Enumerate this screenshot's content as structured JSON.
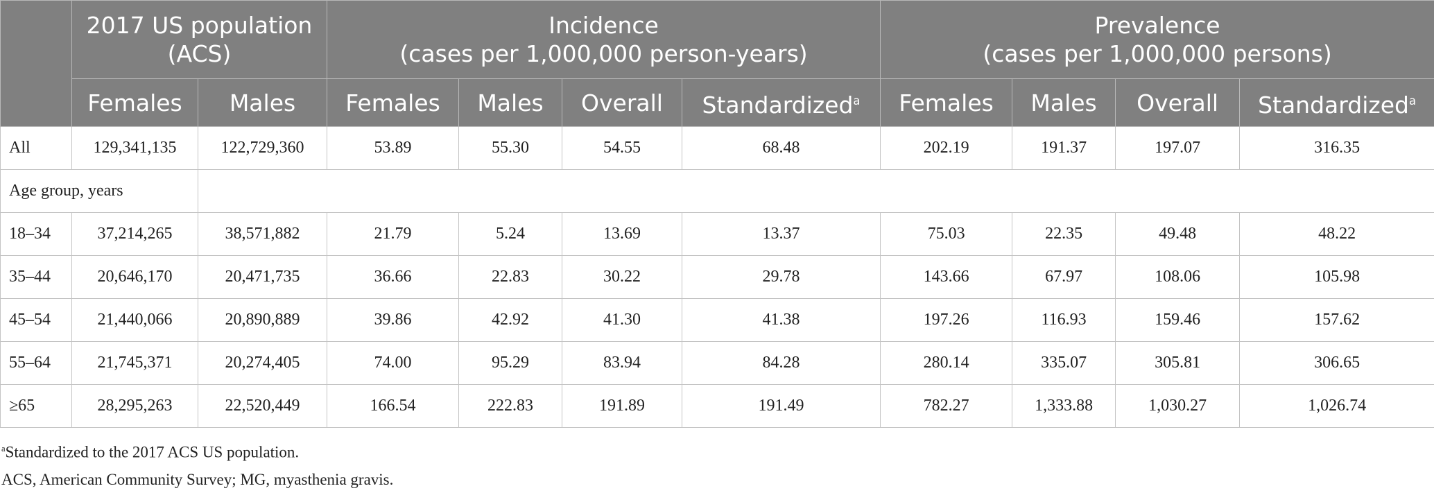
{
  "table": {
    "group_headers": [
      {
        "lines": [
          "2017 US population",
          "(ACS)"
        ],
        "span": 2
      },
      {
        "lines": [
          "Incidence",
          "(cases per 1,000,000 person-years)"
        ],
        "span": 4
      },
      {
        "lines": [
          "Prevalence",
          "(cases per 1,000,000 persons)"
        ],
        "span": 4
      }
    ],
    "subheaders": [
      "Females",
      "Males",
      "Females",
      "Males",
      "Overall",
      {
        "text": "Standardized",
        "sup": "a"
      },
      "Females",
      "Males",
      "Overall",
      {
        "text": "Standardized",
        "sup": "a"
      }
    ],
    "top_rows": [
      [
        "All",
        "129,341,135",
        "122,729,360",
        "53.89",
        "55.30",
        "54.55",
        "68.48",
        "202.19",
        "191.37",
        "197.07",
        "316.35"
      ]
    ],
    "section": "Age group, years",
    "rows": [
      [
        "18–34",
        "37,214,265",
        "38,571,882",
        "21.79",
        "5.24",
        "13.69",
        "13.37",
        "75.03",
        "22.35",
        "49.48",
        "48.22"
      ],
      [
        "35–44",
        "20,646,170",
        "20,471,735",
        "36.66",
        "22.83",
        "30.22",
        "29.78",
        "143.66",
        "67.97",
        "108.06",
        "105.98"
      ],
      [
        "45–54",
        "21,440,066",
        "20,890,889",
        "39.86",
        "42.92",
        "41.30",
        "41.38",
        "197.26",
        "116.93",
        "159.46",
        "157.62"
      ],
      [
        "55–64",
        "21,745,371",
        "20,274,405",
        "74.00",
        "95.29",
        "83.94",
        "84.28",
        "280.14",
        "335.07",
        "305.81",
        "306.65"
      ],
      [
        "≥65",
        "28,295,263",
        "22,520,449",
        "166.54",
        "222.83",
        "191.89",
        "191.49",
        "782.27",
        "1,333.88",
        "1,030.27",
        "1,026.74"
      ]
    ],
    "footnotes": [
      {
        "sup": "a",
        "text": "Standardized to the 2017 ACS US population."
      },
      {
        "text": "ACS, American Community Survey; MG, myasthenia gravis."
      }
    ]
  }
}
